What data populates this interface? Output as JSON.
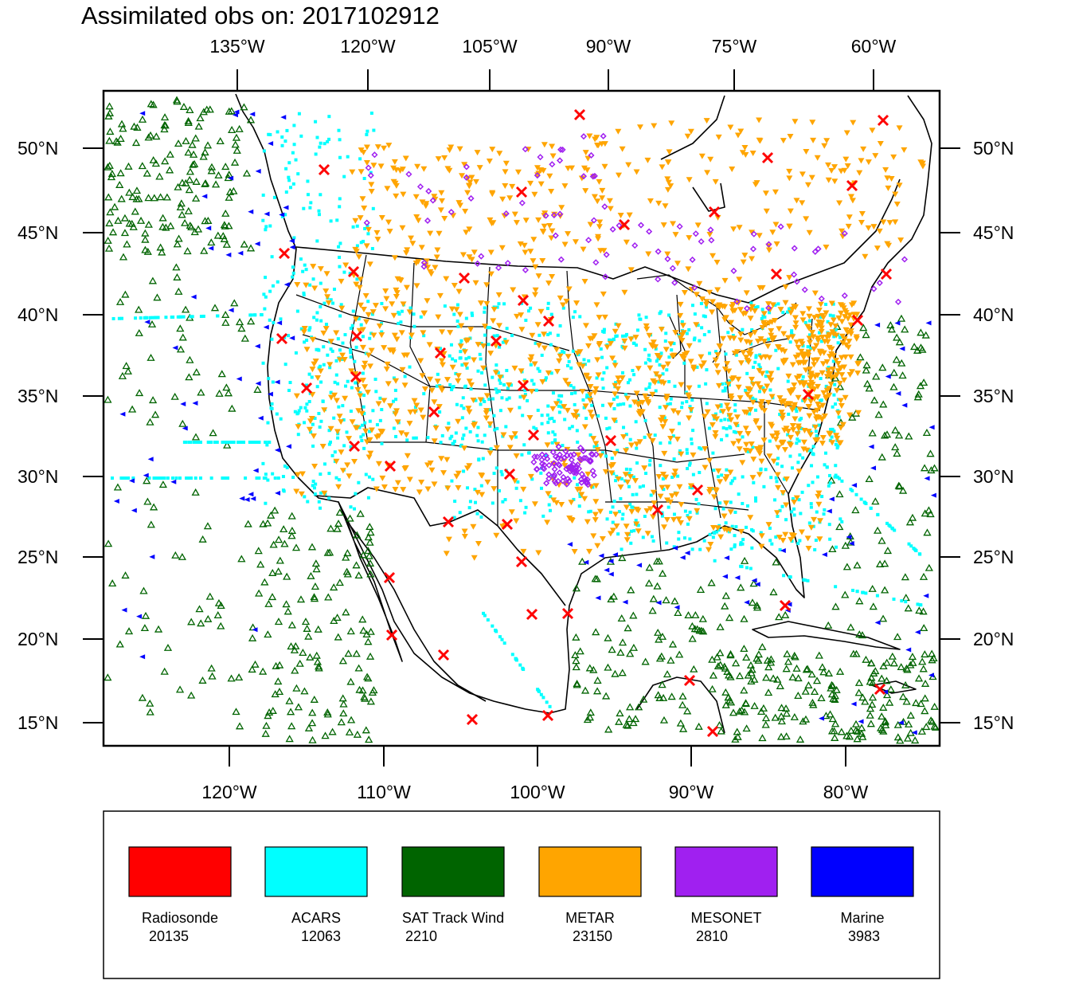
{
  "title": "Assimilated obs on: 2017102912",
  "top_lon_labels": [
    "135°W",
    "120°W",
    "105°W",
    "90°W",
    "75°W",
    "60°W"
  ],
  "bottom_lon_labels": [
    "120°W",
    "110°W",
    "100°W",
    "90°W",
    "80°W"
  ],
  "lat_labels": [
    "50°N",
    "45°N",
    "40°N",
    "35°N",
    "30°N",
    "25°N",
    "20°N",
    "15°N"
  ],
  "legend": [
    {
      "name": "Radiosonde",
      "count": "20135",
      "color": "#ff0000"
    },
    {
      "name": "ACARS",
      "count": "12063",
      "color": "#00ffff"
    },
    {
      "name": "SAT Track Wind",
      "count": "2210",
      "color": "#006400"
    },
    {
      "name": "METAR",
      "count": "23150",
      "color": "#ffa500"
    },
    {
      "name": "MESONET",
      "count": "2810",
      "color": "#a020f0"
    },
    {
      "name": "Marine",
      "count": "3983",
      "color": "#0000ff"
    }
  ],
  "colors": {
    "radiosonde": "#ff0000",
    "acars": "#00ffff",
    "sat": "#006400",
    "metar": "#ffa500",
    "mesonet": "#a020f0",
    "marine": "#0000ff",
    "border": "#000000"
  }
}
